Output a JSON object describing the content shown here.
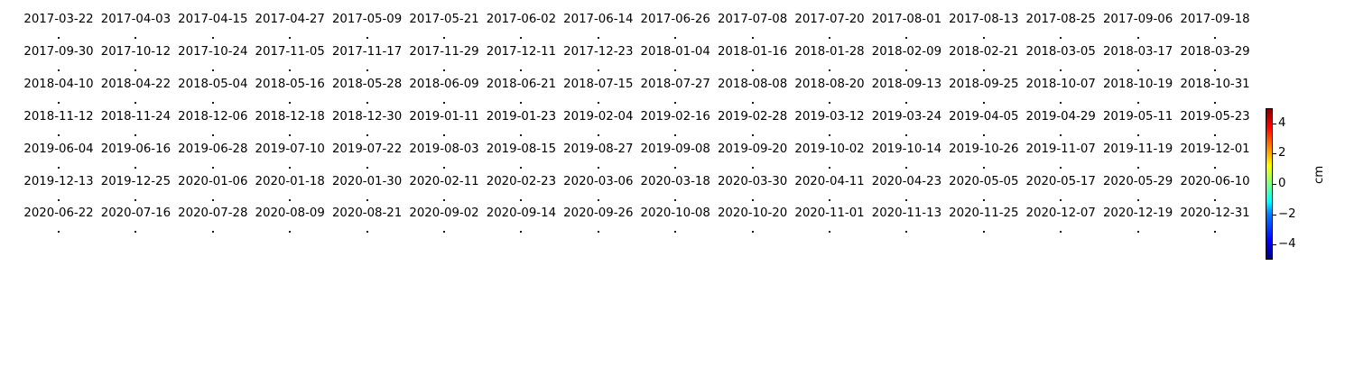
{
  "chart_data": {
    "type": "heatmap",
    "title": "",
    "layout": "small-multiples grid of per-date maps (7 rows x 16 columns); each map shows a few nearly invisible points",
    "dates": [
      "2017-03-22",
      "2017-04-03",
      "2017-04-15",
      "2017-04-27",
      "2017-05-09",
      "2017-05-21",
      "2017-06-02",
      "2017-06-14",
      "2017-06-26",
      "2017-07-08",
      "2017-07-20",
      "2017-08-01",
      "2017-08-13",
      "2017-08-25",
      "2017-09-06",
      "2017-09-18",
      "2017-09-30",
      "2017-10-12",
      "2017-10-24",
      "2017-11-05",
      "2017-11-17",
      "2017-11-29",
      "2017-12-11",
      "2017-12-23",
      "2018-01-04",
      "2018-01-16",
      "2018-01-28",
      "2018-02-09",
      "2018-02-21",
      "2018-03-05",
      "2018-03-17",
      "2018-03-29",
      "2018-04-10",
      "2018-04-22",
      "2018-05-04",
      "2018-05-16",
      "2018-05-28",
      "2018-06-09",
      "2018-06-21",
      "2018-07-15",
      "2018-07-27",
      "2018-08-08",
      "2018-08-20",
      "2018-09-13",
      "2018-09-25",
      "2018-10-07",
      "2018-10-19",
      "2018-10-31",
      "2018-11-12",
      "2018-11-24",
      "2018-12-06",
      "2018-12-18",
      "2018-12-30",
      "2019-01-11",
      "2019-01-23",
      "2019-02-04",
      "2019-02-16",
      "2019-02-28",
      "2019-03-12",
      "2019-03-24",
      "2019-04-05",
      "2019-04-29",
      "2019-05-11",
      "2019-05-23",
      "2019-06-04",
      "2019-06-16",
      "2019-06-28",
      "2019-07-10",
      "2019-07-22",
      "2019-08-03",
      "2019-08-15",
      "2019-08-27",
      "2019-09-08",
      "2019-09-20",
      "2019-10-02",
      "2019-10-14",
      "2019-10-26",
      "2019-11-07",
      "2019-11-19",
      "2019-12-01",
      "2019-12-13",
      "2019-12-25",
      "2020-01-06",
      "2020-01-18",
      "2020-01-30",
      "2020-02-11",
      "2020-02-23",
      "2020-03-06",
      "2020-03-18",
      "2020-03-30",
      "2020-04-11",
      "2020-04-23",
      "2020-05-05",
      "2020-05-17",
      "2020-05-29",
      "2020-06-10",
      "2020-06-22",
      "2020-07-16",
      "2020-07-28",
      "2020-08-09",
      "2020-08-21",
      "2020-09-02",
      "2020-09-14",
      "2020-09-26",
      "2020-10-08",
      "2020-10-20",
      "2020-11-01",
      "2020-11-13",
      "2020-11-25",
      "2020-12-07",
      "2020-12-19",
      "2020-12-31"
    ],
    "colorbar": {
      "label": "cm",
      "colormap": "jet",
      "range": [
        -5,
        5
      ],
      "ticks": [
        -4,
        -2,
        0,
        2,
        4
      ],
      "tick_labels": [
        "−4",
        "−2",
        "0",
        "2",
        "4"
      ]
    }
  }
}
